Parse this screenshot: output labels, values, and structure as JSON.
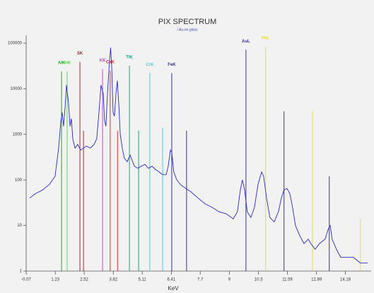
{
  "chart_data": {
    "type": "line",
    "title": "PIX SPECTRUM",
    "subtitle": "/ Au-on-glass",
    "x_label": "KeV",
    "log_y": true,
    "xlim": [
      -0.07,
      15.33
    ],
    "ylim": [
      1,
      100000
    ],
    "xticks": [
      -0.07,
      1.23,
      2.52,
      3.82,
      5.11,
      6.41,
      7.7,
      9,
      10.3,
      11.59,
      12.89,
      14.18
    ],
    "yticks": [
      100000,
      10000,
      1000,
      100,
      10,
      1
    ],
    "series": [
      {
        "color": "#2a2ad0",
        "x": [
          0.09,
          0.34,
          0.66,
          0.97,
          1.22,
          1.38,
          1.48,
          1.54,
          1.6,
          1.67,
          1.73,
          1.82,
          1.89,
          1.95,
          2.01,
          2.11,
          2.23,
          2.36,
          2.49,
          2.61,
          2.8,
          2.96,
          3.08,
          3.18,
          3.27,
          3.37,
          3.43,
          3.49,
          3.56,
          3.65,
          3.7,
          3.75,
          3.81,
          3.87,
          3.94,
          4.0,
          4.06,
          4.13,
          4.22,
          4.31,
          4.44,
          4.57,
          4.76,
          4.91,
          5.07,
          5.23,
          5.39,
          5.55,
          5.7,
          5.86,
          6.02,
          6.18,
          6.27,
          6.37,
          6.43,
          6.52,
          6.65,
          6.81,
          6.96,
          7.28,
          7.6,
          7.91,
          8.23,
          8.54,
          8.86,
          9.17,
          9.36,
          9.49,
          9.58,
          9.68,
          9.8,
          9.96,
          10.12,
          10.28,
          10.44,
          10.53,
          10.66,
          10.81,
          11.0,
          11.19,
          11.32,
          11.44,
          11.57,
          11.7,
          11.82,
          11.95,
          12.14,
          12.33,
          12.52,
          12.64,
          12.83,
          13.02,
          13.27,
          13.4,
          13.5,
          13.59,
          13.78,
          13.97,
          14.22,
          14.54,
          14.85,
          15.17
        ],
        "values": [
          40,
          50,
          60,
          80,
          120,
          500,
          2000,
          3000,
          1500,
          4000,
          12000,
          5000,
          1500,
          2200,
          800,
          500,
          600,
          450,
          500,
          550,
          500,
          600,
          800,
          3000,
          12000,
          8000,
          2000,
          1500,
          8000,
          40000,
          80000,
          30000,
          3000,
          2500,
          8000,
          15000,
          5000,
          1000,
          500,
          300,
          250,
          350,
          200,
          180,
          200,
          220,
          180,
          200,
          170,
          150,
          130,
          130,
          200,
          450,
          400,
          150,
          100,
          80,
          70,
          55,
          40,
          30,
          25,
          20,
          18,
          14,
          20,
          60,
          100,
          60,
          20,
          15,
          25,
          80,
          150,
          120,
          40,
          15,
          12,
          20,
          40,
          60,
          65,
          50,
          25,
          10,
          6,
          4,
          5,
          4,
          3,
          4,
          5,
          8,
          10,
          5,
          3,
          2,
          2,
          2,
          1.5,
          1.5
        ]
      }
    ],
    "element_lines": [
      {
        "label": "AlK",
        "color": "#2ca02c",
        "x": [
          1.51
        ],
        "values": [
          24000
        ]
      },
      {
        "label": "SiK",
        "color": "#5cd65c",
        "x": [
          1.76
        ],
        "values": [
          24000
        ]
      },
      {
        "label": "SK",
        "color": "#a03030",
        "x": [
          2.33,
          2.49
        ],
        "values": [
          39000,
          1200
        ]
      },
      {
        "label": "KK",
        "color": "#d040d0",
        "x": [
          3.34
        ],
        "values": [
          27000
        ]
      },
      {
        "label": "CaK",
        "color": "#e03030",
        "x": [
          3.68,
          4.01
        ],
        "values": [
          25000,
          1200
        ]
      },
      {
        "label": "TiK",
        "color": "#20a080",
        "x": [
          4.54,
          4.95
        ],
        "values": [
          32000,
          1200
        ]
      },
      {
        "label": "CrK",
        "color": "#40d0d0",
        "x": [
          5.45,
          6.02
        ],
        "values": [
          22000,
          1400
        ]
      },
      {
        "label": "FeK",
        "color": "#303090",
        "x": [
          6.43,
          7.09
        ],
        "values": [
          22000,
          1200
        ]
      },
      {
        "label": "AuL",
        "color": "#3030c0",
        "x": [
          9.74,
          11.44,
          13.46
        ],
        "values": [
          72000,
          3200,
          120
        ]
      },
      {
        "label": "PbL",
        "color": "#e0e040",
        "x": [
          10.62,
          12.71,
          14.85
        ],
        "values": [
          84000,
          3200,
          14
        ]
      }
    ]
  }
}
